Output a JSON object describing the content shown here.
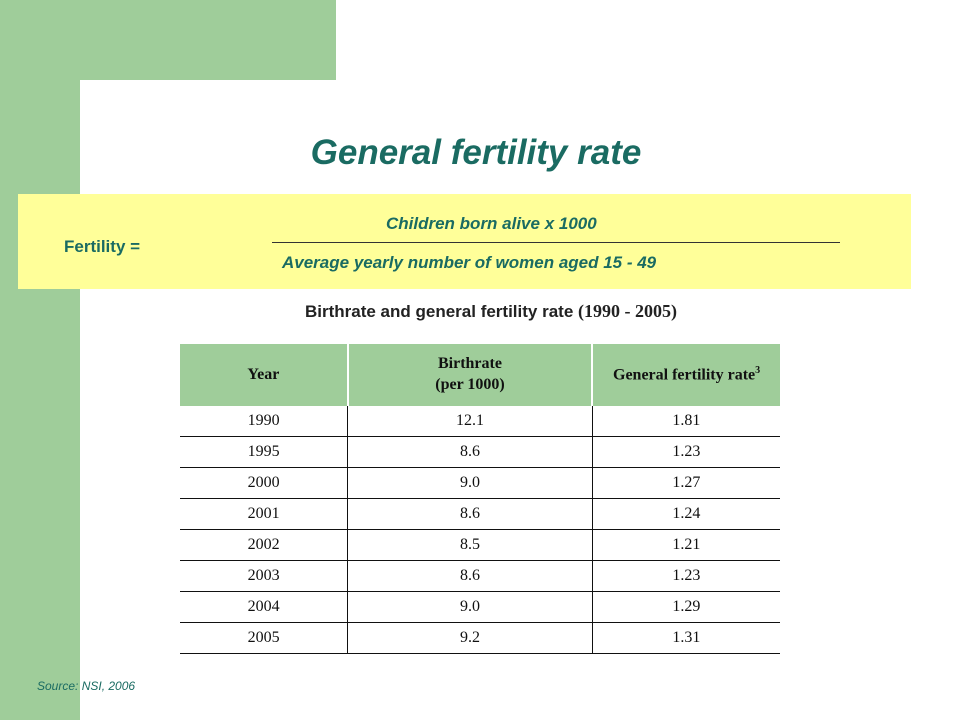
{
  "title": "General fertility rate",
  "formula": {
    "lhs": "Fertility  =",
    "numerator": "Children born alive  x  1000",
    "denominator": "Average yearly number of women aged 15 - 49"
  },
  "table_title": {
    "text": "Birthrate and general fertility rate",
    "range": "(1990 - 2005)"
  },
  "table": {
    "headers": {
      "year": "Year",
      "birthrate_line1": "Birthrate",
      "birthrate_line2": "(per 1000)",
      "fertility": "General fertility rate",
      "fertility_note": "3"
    },
    "rows": [
      {
        "year": "1990",
        "birthrate": "12.1",
        "fertility": "1.81"
      },
      {
        "year": "1995",
        "birthrate": "8.6",
        "fertility": "1.23"
      },
      {
        "year": "2000",
        "birthrate": "9.0",
        "fertility": "1.27"
      },
      {
        "year": "2001",
        "birthrate": "8.6",
        "fertility": "1.24"
      },
      {
        "year": "2002",
        "birthrate": "8.5",
        "fertility": "1.21"
      },
      {
        "year": "2003",
        "birthrate": "8.6",
        "fertility": "1.23"
      },
      {
        "year": "2004",
        "birthrate": "9.0",
        "fertility": "1.29"
      },
      {
        "year": "2005",
        "birthrate": "9.2",
        "fertility": "1.31"
      }
    ]
  },
  "source": "Source: NSI, 2006",
  "colors": {
    "accent_green": "#9fcd9a",
    "title_teal": "#1a6b62",
    "formula_yellow": "#ffff99"
  }
}
